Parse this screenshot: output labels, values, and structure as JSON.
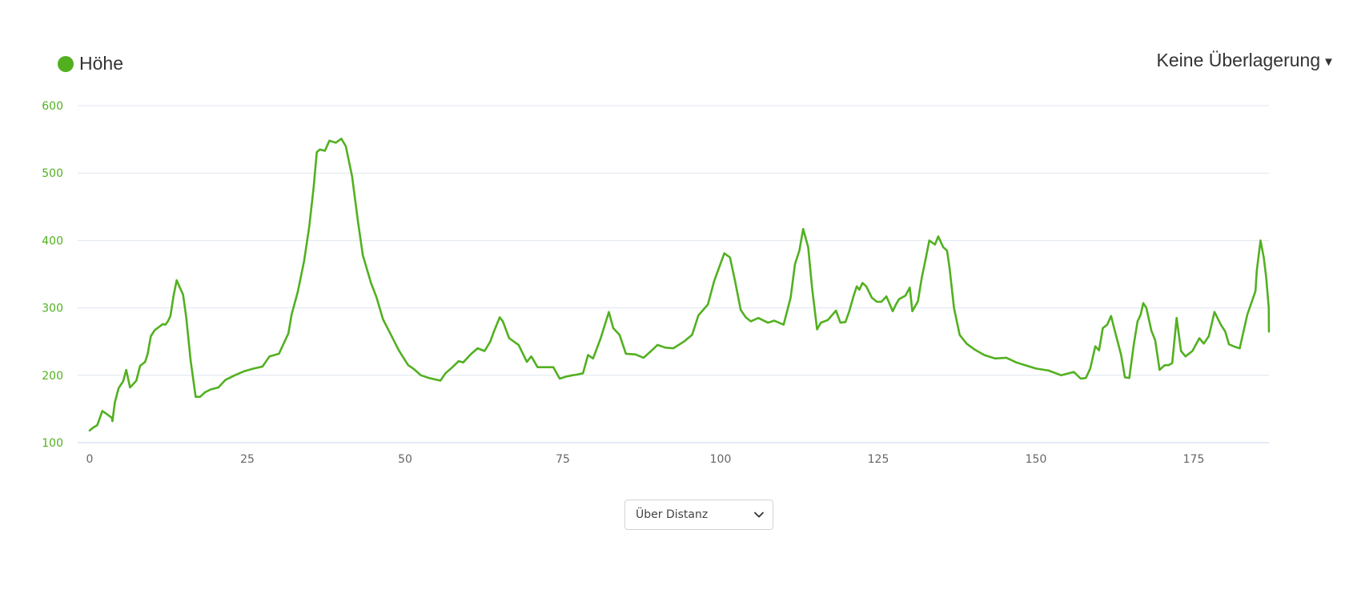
{
  "legend": {
    "label": "Höhe",
    "color": "#52b020",
    "marker_icon": "legend-circle-icon"
  },
  "overlay_menu": {
    "label": "Keine Überlagerung",
    "icon": "caret-down-icon"
  },
  "x_mode_select": {
    "selected": "Über Distanz",
    "icon": "chevron-down-icon"
  },
  "chart_data": {
    "type": "line",
    "xlim": [
      0,
      188
    ],
    "ylim": [
      100,
      600
    ],
    "y_ticks": [
      100,
      200,
      300,
      400,
      500,
      600
    ],
    "x_ticks": [
      0,
      25,
      50,
      75,
      100,
      125,
      150,
      175
    ],
    "grid": true,
    "axis_color": "#52b020",
    "tick_label_color_x": "#666666",
    "series": [
      {
        "color": "#52b020",
        "x": [
          0,
          0.5,
          1.2,
          2,
          2.5,
          3.5,
          3.6,
          4,
          4.6,
          5.3,
          5.8,
          6.4,
          7,
          7.4,
          8,
          8.8,
          9.2,
          9.7,
          10.3,
          10.9,
          11.6,
          12,
          12.4,
          12.8,
          13.3,
          13.8,
          14.3,
          14.8,
          15.1,
          15.3,
          16,
          16.8,
          17.5,
          18.3,
          19.2,
          20.4,
          21.5,
          23,
          24.5,
          26,
          27.4,
          28.5,
          30,
          31.5,
          32,
          33,
          34,
          34.8,
          35.5,
          36,
          36.5,
          37.3,
          38,
          39,
          39.9,
          40.6,
          41.6,
          42.5,
          43.3,
          44.6,
          45.5,
          46.5,
          47.6,
          49,
          50.5,
          51.3,
          52.5,
          53.8,
          55.6,
          56.4,
          57.5,
          58.5,
          59.2,
          60.5,
          61.5,
          62.6,
          63.5,
          64,
          65,
          65.5,
          66.5,
          68,
          69.3,
          70,
          71,
          72,
          73.5,
          74.5,
          75.5,
          76.5,
          77.2,
          78.2,
          79,
          79.8,
          81,
          82.3,
          83,
          84,
          85,
          86.5,
          87.8,
          89,
          90,
          91.3,
          92.5,
          94.2,
          95.5,
          96.5,
          98,
          99,
          100.6,
          101.5,
          102.3,
          103.2,
          104,
          104.8,
          106,
          107.5,
          108.5,
          110,
          111.1,
          111.8,
          112.5,
          113.1,
          113.9,
          114.5,
          115.3,
          115.9,
          117,
          118.3,
          119,
          119.8,
          120.4,
          121.1,
          121.6,
          122,
          122.5,
          123.1,
          124,
          124.8,
          125.5,
          126.3,
          127.3,
          127.8,
          128.3,
          129.3,
          130,
          130.4,
          131.3,
          131.9,
          132.5,
          133.1,
          134,
          134.5,
          135.3,
          135.9,
          136.3,
          137,
          137.9,
          139,
          140.3,
          141.8,
          143.5,
          145.3,
          146.9,
          148.3,
          150,
          152,
          154,
          156,
          157.1,
          157.9,
          158.6,
          159.4,
          160,
          160.6,
          161.3,
          161.9,
          162.5,
          163.5,
          164.1,
          164.8,
          165.5,
          166.1,
          166.6,
          167,
          167.5,
          168.3,
          168.9,
          169.6,
          170.4,
          171,
          171.6,
          172.3,
          173,
          173.7,
          174.8,
          175.9,
          176.6,
          177.4,
          178.3,
          179.3,
          180,
          180.6,
          181.6,
          182.3,
          183.5,
          184.8,
          185,
          185.6,
          186.1,
          186.5,
          186.9,
          187.5,
          188
        ],
        "y": [
          118,
          122,
          126,
          147,
          144,
          137,
          132,
          160,
          181,
          191,
          208,
          182,
          188,
          192,
          214,
          220,
          232,
          258,
          267,
          271,
          276,
          275,
          280,
          288,
          318,
          341,
          330,
          320,
          300,
          286,
          222,
          168,
          168,
          175,
          179,
          182,
          193,
          200,
          206,
          210,
          213,
          228,
          232,
          262,
          290,
          324,
          370,
          420,
          478,
          531,
          535,
          533,
          548,
          545,
          551,
          540,
          495,
          430,
          378,
          337,
          315,
          283,
          263,
          237,
          215,
          210,
          200,
          196,
          192,
          203,
          212,
          221,
          219,
          232,
          240,
          236,
          250,
          263,
          286,
          280,
          255,
          245,
          220,
          228,
          212,
          212,
          212,
          195,
          198,
          200,
          201,
          203,
          230,
          225,
          255,
          294,
          270,
          260,
          232,
          231,
          226,
          236,
          245,
          241,
          240,
          250,
          260,
          289,
          305,
          340,
          381,
          375,
          340,
          297,
          286,
          280,
          285,
          278,
          281,
          275,
          315,
          365,
          385,
          417,
          390,
          330,
          268,
          278,
          282,
          296,
          278,
          279,
          295,
          318,
          332,
          327,
          337,
          332,
          315,
          309,
          309,
          317,
          295,
          305,
          313,
          318,
          330,
          295,
          310,
          345,
          372,
          400,
          394,
          406,
          390,
          385,
          360,
          300,
          260,
          247,
          238,
          230,
          225,
          226,
          219,
          215,
          210,
          207,
          200,
          205,
          195,
          196,
          210,
          243,
          237,
          270,
          275,
          288,
          266,
          230,
          197,
          196,
          245,
          280,
          290,
          307,
          300,
          266,
          252,
          208,
          215,
          215,
          218,
          285,
          236,
          228,
          236,
          255,
          247,
          258,
          294,
          275,
          265,
          246,
          242,
          240,
          290,
          325,
          355,
          400,
          375,
          345,
          300,
          265,
          270
        ]
      }
    ]
  }
}
